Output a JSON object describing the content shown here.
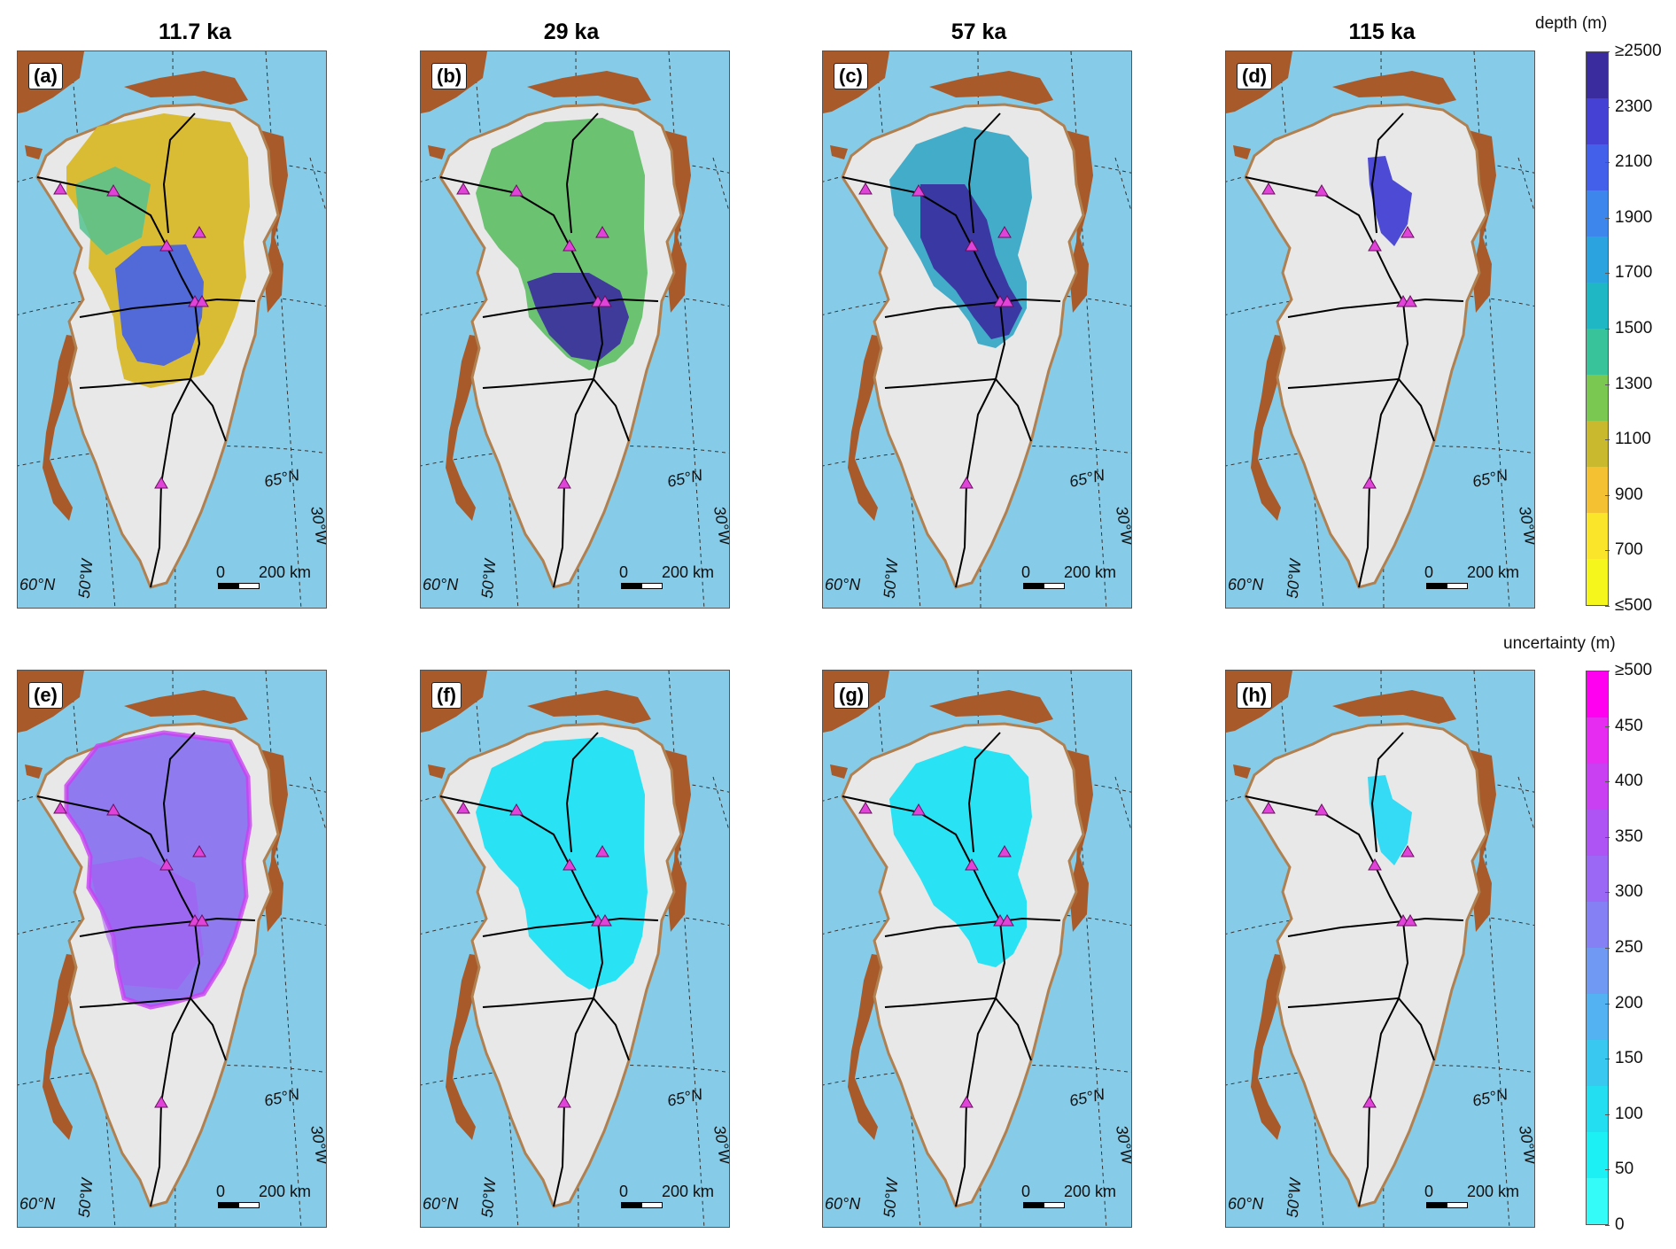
{
  "columns": [
    {
      "title": "11.7 ka"
    },
    {
      "title": "29 ka"
    },
    {
      "title": "57 ka"
    },
    {
      "title": "115 ka"
    }
  ],
  "panels": [
    {
      "label": "(a)",
      "type": "depth",
      "level": 0
    },
    {
      "label": "(b)",
      "type": "depth",
      "level": 1
    },
    {
      "label": "(c)",
      "type": "depth",
      "level": 2
    },
    {
      "label": "(d)",
      "type": "depth",
      "level": 3
    },
    {
      "label": "(e)",
      "type": "uncertainty",
      "level": 0
    },
    {
      "label": "(f)",
      "type": "uncertainty",
      "level": 1
    },
    {
      "label": "(g)",
      "type": "uncertainty",
      "level": 2
    },
    {
      "label": "(h)",
      "type": "uncertainty",
      "level": 3
    }
  ],
  "map_labels": {
    "lat60": "60°N",
    "lat65": "65°N",
    "lon50": "50°W",
    "lon30": "30°W",
    "scale_zero": "0",
    "scale_km": "200 km"
  },
  "depth_colorbar": {
    "title": "depth (m)",
    "ticks": [
      "≥2500",
      "2300",
      "2100",
      "1900",
      "1700",
      "1500",
      "1300",
      "1100",
      "900",
      "700",
      "≤500"
    ],
    "colors": [
      "#3a2c9e",
      "#4441d4",
      "#4360ea",
      "#3d86ec",
      "#2ba3df",
      "#1fb7c4",
      "#38c39a",
      "#7ac852",
      "#c8b92f",
      "#f4c132",
      "#fbe52a",
      "#f5f71c"
    ]
  },
  "uncertainty_colorbar": {
    "title": "uncertainty (m)",
    "ticks": [
      "≥500",
      "450",
      "400",
      "350",
      "300",
      "250",
      "200",
      "150",
      "100",
      "50",
      "0"
    ],
    "colors": [
      "#ff00f0",
      "#e62cf0",
      "#c940f2",
      "#ae54f4",
      "#9a68f4",
      "#8580f4",
      "#6f99f2",
      "#52b2f2",
      "#38c8f0",
      "#22def0",
      "#1cf0f4",
      "#35fbf8"
    ]
  },
  "colors": {
    "ocean": "#86cbe7",
    "ice": "#e8e8e8",
    "land": "#a85a2a",
    "site_marker": "#e043d8"
  }
}
